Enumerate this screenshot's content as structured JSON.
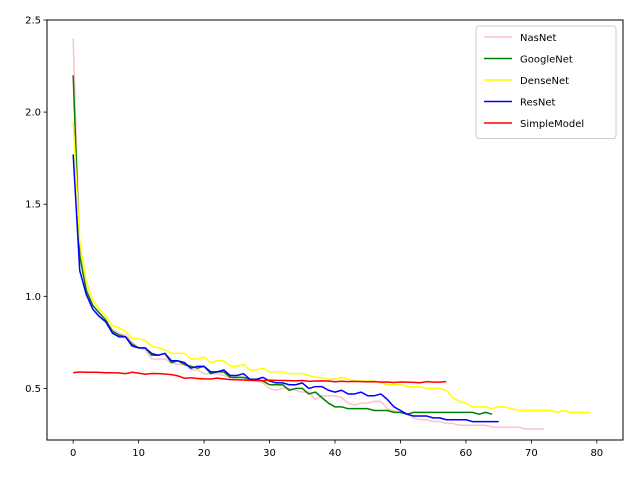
{
  "chart_data": {
    "type": "line",
    "title": "",
    "xlabel": "",
    "ylabel": "",
    "xlim": [
      -4,
      84
    ],
    "ylim": [
      0.22,
      2.5
    ],
    "xticks": [
      0,
      10,
      20,
      30,
      40,
      50,
      60,
      70,
      80
    ],
    "yticks": [
      0.5,
      1.0,
      1.5,
      2.0,
      2.5
    ],
    "ytick_labels": [
      "0.5",
      "1.0",
      "1.5",
      "2.0",
      "2.5"
    ],
    "grid": false,
    "legend_position": "top-right",
    "series": [
      {
        "name": "NasNet",
        "color": "#ffc0cb",
        "x": [
          0,
          1,
          2,
          3,
          4,
          5,
          6,
          7,
          8,
          9,
          10,
          11,
          12,
          13,
          14,
          15,
          16,
          17,
          18,
          19,
          20,
          21,
          22,
          23,
          24,
          25,
          26,
          27,
          28,
          29,
          30,
          31,
          32,
          33,
          34,
          35,
          36,
          37,
          38,
          39,
          40,
          41,
          42,
          43,
          44,
          45,
          46,
          47,
          48,
          49,
          50,
          51,
          52,
          53,
          54,
          55,
          56,
          57,
          58,
          59,
          60,
          61,
          62,
          63,
          64,
          65,
          66,
          67,
          68,
          69,
          70,
          71,
          72
        ],
        "y": [
          2.4,
          1.25,
          1.05,
          0.95,
          0.9,
          0.86,
          0.82,
          0.8,
          0.79,
          0.75,
          0.72,
          0.71,
          0.66,
          0.66,
          0.66,
          0.64,
          0.63,
          0.63,
          0.6,
          0.6,
          0.58,
          0.58,
          0.58,
          0.57,
          0.56,
          0.55,
          0.55,
          0.55,
          0.54,
          0.53,
          0.5,
          0.49,
          0.5,
          0.5,
          0.49,
          0.48,
          0.48,
          0.44,
          0.46,
          0.46,
          0.46,
          0.45,
          0.42,
          0.41,
          0.42,
          0.42,
          0.43,
          0.43,
          0.39,
          0.38,
          0.37,
          0.36,
          0.34,
          0.33,
          0.33,
          0.32,
          0.32,
          0.31,
          0.31,
          0.3,
          0.3,
          0.3,
          0.3,
          0.3,
          0.29,
          0.29,
          0.29,
          0.29,
          0.29,
          0.28,
          0.28,
          0.28,
          0.28
        ]
      },
      {
        "name": "GoogleNet",
        "color": "#008000",
        "x": [
          0,
          1,
          2,
          3,
          4,
          5,
          6,
          7,
          8,
          9,
          10,
          11,
          12,
          13,
          14,
          15,
          16,
          17,
          18,
          19,
          20,
          21,
          22,
          23,
          24,
          25,
          26,
          27,
          28,
          29,
          30,
          31,
          32,
          33,
          34,
          35,
          36,
          37,
          38,
          39,
          40,
          41,
          42,
          43,
          44,
          45,
          46,
          47,
          48,
          49,
          50,
          51,
          52,
          53,
          54,
          55,
          56,
          57,
          58,
          59,
          60,
          61,
          62,
          63,
          64
        ],
        "y": [
          2.2,
          1.22,
          1.03,
          0.95,
          0.91,
          0.87,
          0.81,
          0.79,
          0.78,
          0.74,
          0.72,
          0.72,
          0.68,
          0.68,
          0.69,
          0.64,
          0.65,
          0.63,
          0.62,
          0.61,
          0.62,
          0.58,
          0.59,
          0.59,
          0.56,
          0.56,
          0.56,
          0.55,
          0.55,
          0.54,
          0.52,
          0.52,
          0.52,
          0.49,
          0.5,
          0.5,
          0.47,
          0.48,
          0.45,
          0.42,
          0.4,
          0.4,
          0.39,
          0.39,
          0.39,
          0.39,
          0.38,
          0.38,
          0.38,
          0.37,
          0.37,
          0.36,
          0.37,
          0.37,
          0.37,
          0.37,
          0.37,
          0.37,
          0.37,
          0.37,
          0.37,
          0.37,
          0.36,
          0.37,
          0.36
        ]
      },
      {
        "name": "DenseNet",
        "color": "#ffff00",
        "x": [
          0,
          1,
          2,
          3,
          4,
          5,
          6,
          7,
          8,
          9,
          10,
          11,
          12,
          13,
          14,
          15,
          16,
          17,
          18,
          19,
          20,
          21,
          22,
          23,
          24,
          25,
          26,
          27,
          28,
          29,
          30,
          31,
          32,
          33,
          34,
          35,
          36,
          37,
          38,
          39,
          40,
          41,
          42,
          43,
          44,
          45,
          46,
          47,
          48,
          49,
          50,
          51,
          52,
          53,
          54,
          55,
          56,
          57,
          58,
          59,
          60,
          61,
          62,
          63,
          64,
          65,
          66,
          67,
          68,
          69,
          70,
          71,
          72,
          73,
          74,
          75,
          76,
          77,
          78,
          79
        ],
        "y": [
          1.95,
          1.3,
          1.08,
          0.98,
          0.93,
          0.89,
          0.84,
          0.83,
          0.81,
          0.77,
          0.77,
          0.76,
          0.73,
          0.72,
          0.71,
          0.69,
          0.69,
          0.69,
          0.66,
          0.66,
          0.67,
          0.64,
          0.65,
          0.65,
          0.62,
          0.62,
          0.63,
          0.6,
          0.6,
          0.61,
          0.59,
          0.59,
          0.59,
          0.58,
          0.58,
          0.58,
          0.57,
          0.56,
          0.56,
          0.55,
          0.55,
          0.56,
          0.55,
          0.54,
          0.54,
          0.54,
          0.54,
          0.53,
          0.52,
          0.52,
          0.52,
          0.51,
          0.51,
          0.51,
          0.5,
          0.5,
          0.5,
          0.49,
          0.45,
          0.43,
          0.42,
          0.4,
          0.4,
          0.4,
          0.39,
          0.4,
          0.4,
          0.39,
          0.38,
          0.38,
          0.38,
          0.38,
          0.38,
          0.38,
          0.37,
          0.38,
          0.37,
          0.37,
          0.37,
          0.37
        ]
      },
      {
        "name": "ResNet",
        "color": "#0000ff",
        "x": [
          0,
          1,
          2,
          3,
          4,
          5,
          6,
          7,
          8,
          9,
          10,
          11,
          12,
          13,
          14,
          15,
          16,
          17,
          18,
          19,
          20,
          21,
          22,
          23,
          24,
          25,
          26,
          27,
          28,
          29,
          30,
          31,
          32,
          33,
          34,
          35,
          36,
          37,
          38,
          39,
          40,
          41,
          42,
          43,
          44,
          45,
          46,
          47,
          48,
          49,
          50,
          51,
          52,
          53,
          54,
          55,
          56,
          57,
          58,
          59,
          60,
          61,
          62,
          63,
          64,
          65
        ],
        "y": [
          1.77,
          1.14,
          1.01,
          0.93,
          0.89,
          0.86,
          0.8,
          0.78,
          0.78,
          0.73,
          0.72,
          0.72,
          0.69,
          0.68,
          0.69,
          0.65,
          0.65,
          0.64,
          0.61,
          0.62,
          0.62,
          0.59,
          0.59,
          0.6,
          0.57,
          0.57,
          0.58,
          0.55,
          0.55,
          0.56,
          0.54,
          0.53,
          0.53,
          0.52,
          0.52,
          0.53,
          0.5,
          0.51,
          0.51,
          0.49,
          0.48,
          0.49,
          0.47,
          0.47,
          0.48,
          0.46,
          0.46,
          0.47,
          0.44,
          0.4,
          0.38,
          0.36,
          0.35,
          0.35,
          0.35,
          0.34,
          0.34,
          0.33,
          0.33,
          0.33,
          0.33,
          0.32,
          0.32,
          0.32,
          0.32,
          0.32
        ]
      },
      {
        "name": "SimpleModel",
        "color": "#ff0000",
        "x": [
          0,
          1,
          2,
          3,
          4,
          5,
          6,
          7,
          8,
          9,
          10,
          11,
          12,
          13,
          14,
          15,
          16,
          17,
          18,
          19,
          20,
          21,
          22,
          23,
          24,
          25,
          26,
          27,
          28,
          29,
          30,
          31,
          32,
          33,
          34,
          35,
          36,
          37,
          38,
          39,
          40,
          41,
          42,
          43,
          44,
          45,
          46,
          47,
          48,
          49,
          50,
          51,
          52,
          53,
          54,
          55,
          56,
          57
        ],
        "y": [
          0.585,
          0.589,
          0.588,
          0.588,
          0.587,
          0.585,
          0.585,
          0.584,
          0.58,
          0.588,
          0.583,
          0.577,
          0.581,
          0.58,
          0.578,
          0.575,
          0.568,
          0.555,
          0.558,
          0.554,
          0.552,
          0.551,
          0.556,
          0.552,
          0.548,
          0.547,
          0.546,
          0.544,
          0.543,
          0.542,
          0.545,
          0.544,
          0.543,
          0.542,
          0.541,
          0.543,
          0.538,
          0.54,
          0.541,
          0.54,
          0.536,
          0.539,
          0.537,
          0.538,
          0.537,
          0.536,
          0.537,
          0.534,
          0.535,
          0.532,
          0.535,
          0.534,
          0.533,
          0.531,
          0.537,
          0.534,
          0.534,
          0.537
        ]
      }
    ]
  }
}
